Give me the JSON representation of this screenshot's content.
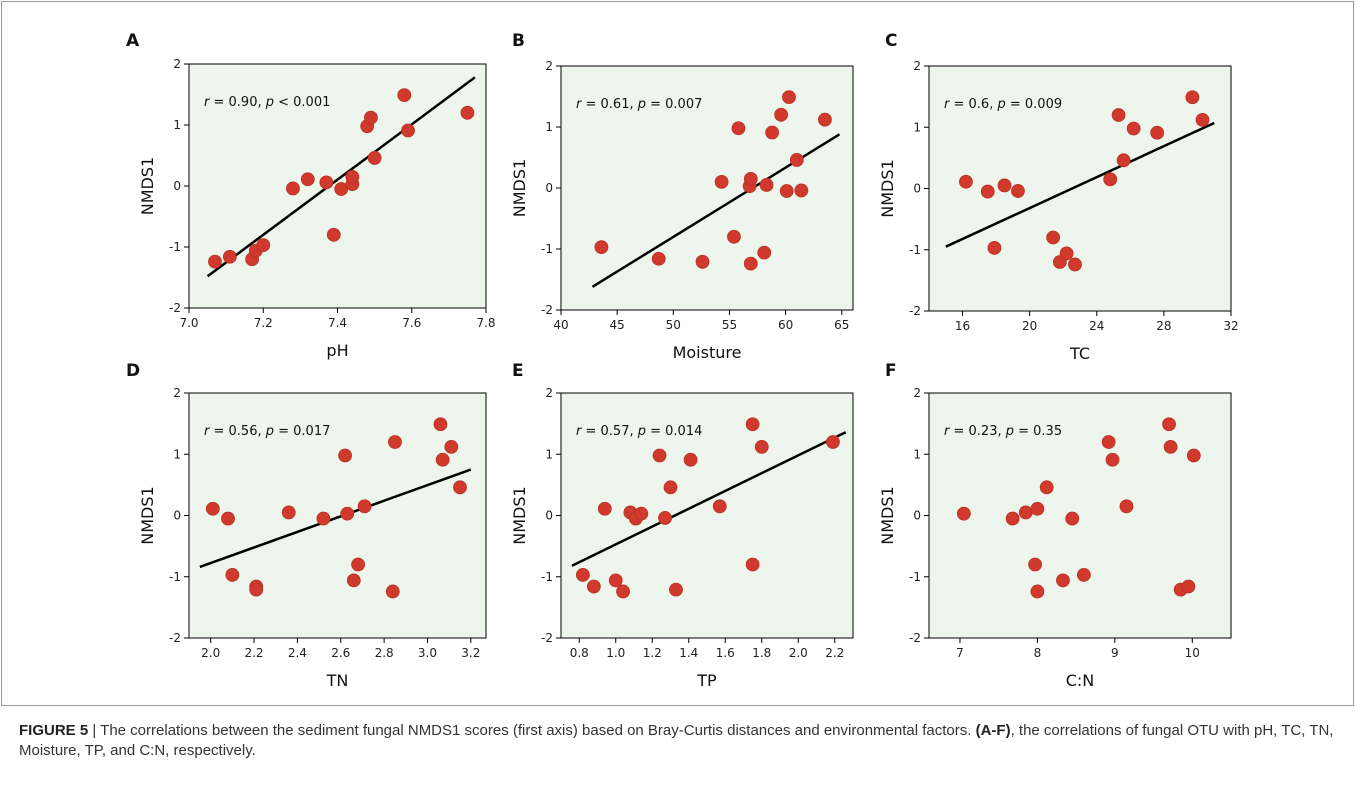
{
  "colors": {
    "point": "#d0392b",
    "point_stroke": "#b83225",
    "plot_bg": "#eef5ed",
    "line": "#000000",
    "frame": "#9a9a9a"
  },
  "caption": {
    "figure_label": "FIGURE 5",
    "separator": "|",
    "text_1": "The correlations between the sediment fungal NMDS1 scores (first axis) based on Bray-Curtis distances and environmental factors.",
    "panel_range": "(A-F)",
    "text_2": ", the correlations of fungal OTU with pH, TC, TN,  Moisture, TP, and C:N, respectively."
  },
  "chart_data": [
    {
      "panel": "A",
      "type": "scatter",
      "xlabel": "pH",
      "ylabel": "NMDS1",
      "annotation": {
        "r_label": "r",
        "r_text": " = 0.90, ",
        "p_label": "p",
        "p_text": " < 0.001"
      },
      "xlim": [
        7.0,
        7.8
      ],
      "ylim": [
        -2,
        2
      ],
      "xticks": [
        "7.0",
        "7.2",
        "7.4",
        "7.6",
        "7.8"
      ],
      "xtick_values": [
        7.0,
        7.2,
        7.4,
        7.6,
        7.8
      ],
      "yticks": [
        "-2",
        "-1",
        "0",
        "1",
        "2"
      ],
      "ytick_values": [
        -2,
        -1,
        0,
        1,
        2
      ],
      "fit": [
        [
          7.05,
          -1.48
        ],
        [
          7.77,
          1.78
        ]
      ],
      "points": [
        [
          7.07,
          -1.24
        ],
        [
          7.11,
          -1.16
        ],
        [
          7.17,
          -1.2
        ],
        [
          7.18,
          -1.06
        ],
        [
          7.2,
          -0.97
        ],
        [
          7.28,
          -0.04
        ],
        [
          7.32,
          0.11
        ],
        [
          7.37,
          0.06
        ],
        [
          7.39,
          -0.8
        ],
        [
          7.41,
          -0.05
        ],
        [
          7.44,
          0.03
        ],
        [
          7.44,
          0.15
        ],
        [
          7.48,
          0.98
        ],
        [
          7.49,
          1.12
        ],
        [
          7.5,
          0.46
        ],
        [
          7.58,
          1.49
        ],
        [
          7.59,
          0.91
        ],
        [
          7.75,
          1.2
        ]
      ]
    },
    {
      "panel": "B",
      "type": "scatter",
      "xlabel": "Moisture",
      "ylabel": "NMDS1",
      "annotation": {
        "r_label": "r",
        "r_text": " = 0.61, ",
        "p_label": "p",
        "p_text": " = 0.007"
      },
      "xlim": [
        40,
        66
      ],
      "ylim": [
        -2,
        2
      ],
      "xticks": [
        "40",
        "45",
        "50",
        "55",
        "60",
        "65"
      ],
      "xtick_values": [
        40,
        45,
        50,
        55,
        60,
        65
      ],
      "yticks": [
        "-2",
        "-1",
        "0",
        "1",
        "2"
      ],
      "ytick_values": [
        -2,
        -1,
        0,
        1,
        2
      ],
      "fit": [
        [
          42.8,
          -1.62
        ],
        [
          64.8,
          0.88
        ]
      ],
      "points": [
        [
          43.6,
          -0.97
        ],
        [
          48.7,
          -1.16
        ],
        [
          52.6,
          -1.21
        ],
        [
          54.3,
          0.1
        ],
        [
          55.4,
          -0.8
        ],
        [
          55.8,
          0.98
        ],
        [
          56.8,
          0.03
        ],
        [
          56.9,
          0.15
        ],
        [
          56.9,
          -1.24
        ],
        [
          58.1,
          -1.06
        ],
        [
          58.3,
          0.05
        ],
        [
          58.8,
          0.91
        ],
        [
          59.6,
          1.2
        ],
        [
          60.1,
          -0.05
        ],
        [
          60.3,
          1.49
        ],
        [
          61.0,
          0.46
        ],
        [
          61.4,
          -0.04
        ],
        [
          63.5,
          1.12
        ]
      ]
    },
    {
      "panel": "C",
      "type": "scatter",
      "xlabel": "TC",
      "ylabel": "NMDS1",
      "annotation": {
        "r_label": "r",
        "r_text": " = 0.6, ",
        "p_label": "p",
        "p_text": " = 0.009"
      },
      "xlim": [
        14,
        32
      ],
      "ylim": [
        -2,
        2
      ],
      "xticks": [
        "16",
        "20",
        "24",
        "28",
        "32"
      ],
      "xtick_values": [
        16,
        20,
        24,
        28,
        32
      ],
      "yticks": [
        "-2",
        "-1",
        "0",
        "1",
        "2"
      ],
      "ytick_values": [
        -2,
        -1,
        0,
        1,
        2
      ],
      "fit": [
        [
          15.0,
          -0.95
        ],
        [
          31.0,
          1.07
        ]
      ],
      "points": [
        [
          16.2,
          0.11
        ],
        [
          17.5,
          -0.05
        ],
        [
          17.9,
          -0.97
        ],
        [
          18.5,
          0.05
        ],
        [
          19.3,
          -0.04
        ],
        [
          21.4,
          -0.8
        ],
        [
          21.8,
          -1.2
        ],
        [
          22.2,
          -1.06
        ],
        [
          22.7,
          -1.24
        ],
        [
          24.8,
          0.15
        ],
        [
          25.3,
          1.2
        ],
        [
          25.6,
          0.46
        ],
        [
          26.2,
          0.98
        ],
        [
          27.6,
          0.91
        ],
        [
          29.7,
          1.49
        ],
        [
          30.3,
          1.12
        ]
      ]
    },
    {
      "panel": "D",
      "type": "scatter",
      "xlabel": "TN",
      "ylabel": "NMDS1",
      "annotation": {
        "r_label": "r",
        "r_text": " = 0.56, ",
        "p_label": "p",
        "p_text": " = 0.017"
      },
      "xlim": [
        1.9,
        3.27
      ],
      "ylim": [
        -2,
        2
      ],
      "xticks": [
        "2.0",
        "2.2",
        "2.4",
        "2.6",
        "2.8",
        "3.0",
        "3.2"
      ],
      "xtick_values": [
        2.0,
        2.2,
        2.4,
        2.6,
        2.8,
        3.0,
        3.2
      ],
      "yticks": [
        "-2",
        "-1",
        "0",
        "1",
        "2"
      ],
      "ytick_values": [
        -2,
        -1,
        0,
        1,
        2
      ],
      "fit": [
        [
          1.95,
          -0.84
        ],
        [
          3.2,
          0.75
        ]
      ],
      "points": [
        [
          2.01,
          0.11
        ],
        [
          2.08,
          -0.05
        ],
        [
          2.1,
          -0.97
        ],
        [
          2.21,
          -1.16
        ],
        [
          2.21,
          -1.21
        ],
        [
          2.36,
          0.05
        ],
        [
          2.52,
          -0.05
        ],
        [
          2.62,
          0.98
        ],
        [
          2.63,
          0.03
        ],
        [
          2.66,
          -1.06
        ],
        [
          2.68,
          -0.8
        ],
        [
          2.71,
          0.15
        ],
        [
          2.84,
          -1.24
        ],
        [
          2.85,
          1.2
        ],
        [
          3.06,
          1.49
        ],
        [
          3.07,
          0.91
        ],
        [
          3.11,
          1.12
        ],
        [
          3.15,
          0.46
        ]
      ]
    },
    {
      "panel": "E",
      "type": "scatter",
      "xlabel": "TP",
      "ylabel": "NMDS1",
      "annotation": {
        "r_label": "r",
        "r_text": " = 0.57, ",
        "p_label": "p",
        "p_text": " = 0.014"
      },
      "xlim": [
        0.7,
        2.3
      ],
      "ylim": [
        -2,
        2
      ],
      "xticks": [
        "0.8",
        "1.0",
        "1.2",
        "1.4",
        "1.6",
        "1.8",
        "2.0",
        "2.2"
      ],
      "xtick_values": [
        0.8,
        1.0,
        1.2,
        1.4,
        1.6,
        1.8,
        2.0,
        2.2
      ],
      "yticks": [
        "-2",
        "-1",
        "0",
        "1",
        "2"
      ],
      "ytick_values": [
        -2,
        -1,
        0,
        1,
        2
      ],
      "fit": [
        [
          0.76,
          -0.82
        ],
        [
          2.26,
          1.36
        ]
      ],
      "points": [
        [
          0.82,
          -0.97
        ],
        [
          0.88,
          -1.16
        ],
        [
          0.94,
          0.11
        ],
        [
          1.0,
          -1.06
        ],
        [
          1.04,
          -1.24
        ],
        [
          1.08,
          0.05
        ],
        [
          1.11,
          -0.05
        ],
        [
          1.14,
          0.03
        ],
        [
          1.24,
          0.98
        ],
        [
          1.27,
          -0.04
        ],
        [
          1.3,
          0.46
        ],
        [
          1.33,
          -1.21
        ],
        [
          1.41,
          0.91
        ],
        [
          1.57,
          0.15
        ],
        [
          1.75,
          -0.8
        ],
        [
          1.75,
          1.49
        ],
        [
          1.8,
          1.12
        ],
        [
          2.19,
          1.2
        ]
      ]
    },
    {
      "panel": "F",
      "type": "scatter",
      "xlabel": "C:N",
      "ylabel": "NMDS1",
      "annotation": {
        "r_label": "r",
        "r_text": " = 0.23, ",
        "p_label": "p",
        "p_text": " = 0.35"
      },
      "xlim": [
        6.6,
        10.5
      ],
      "ylim": [
        -2,
        2
      ],
      "xticks": [
        "7",
        "8",
        "9",
        "10"
      ],
      "xtick_values": [
        7,
        8,
        9,
        10
      ],
      "yticks": [
        "-2",
        "-1",
        "0",
        "1",
        "2"
      ],
      "ytick_values": [
        -2,
        -1,
        0,
        1,
        2
      ],
      "fit": null,
      "points": [
        [
          7.05,
          0.03
        ],
        [
          7.68,
          -0.05
        ],
        [
          7.85,
          0.05
        ],
        [
          7.97,
          -0.8
        ],
        [
          8.0,
          0.11
        ],
        [
          8.0,
          -1.24
        ],
        [
          8.12,
          0.46
        ],
        [
          8.33,
          -1.06
        ],
        [
          8.45,
          -0.05
        ],
        [
          8.6,
          -0.97
        ],
        [
          8.92,
          1.2
        ],
        [
          8.97,
          0.91
        ],
        [
          9.15,
          0.15
        ],
        [
          9.7,
          1.49
        ],
        [
          9.72,
          1.12
        ],
        [
          9.85,
          -1.21
        ],
        [
          9.95,
          -1.16
        ],
        [
          10.02,
          0.98
        ]
      ]
    }
  ]
}
